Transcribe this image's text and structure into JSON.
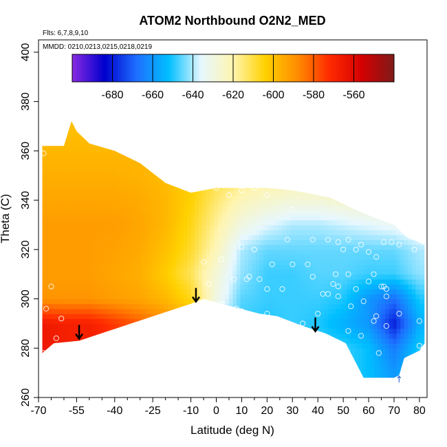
{
  "chart_data": {
    "type": "heatmap",
    "title": "ATOM2 Northbound O2N2_MED",
    "annotations": {
      "flights": "Flts: 6,7,8,9,10",
      "dates": "MMDD: 0210,0213,0215,0218,0219"
    },
    "xlabel": "Latitude (deg N)",
    "ylabel": "Theta (C)",
    "xlim": [
      -70,
      83
    ],
    "ylim": [
      260,
      405
    ],
    "xticks": [
      "-70",
      "-55",
      "-40",
      "-25",
      "-10",
      "0",
      "10",
      "20",
      "30",
      "40",
      "50",
      "60",
      "70",
      "80"
    ],
    "xtick_values": [
      -70,
      -55,
      -40,
      -25,
      -10,
      0,
      10,
      20,
      30,
      40,
      50,
      60,
      70,
      80
    ],
    "xminor_values": [
      -65,
      -60,
      -50,
      -45,
      -35,
      -30,
      -20,
      -15,
      -5,
      5,
      15,
      25,
      35,
      45,
      55,
      65,
      75
    ],
    "yticks": [
      "260",
      "280",
      "300",
      "320",
      "340",
      "360",
      "380",
      "400"
    ],
    "ytick_values": [
      260,
      280,
      300,
      320,
      340,
      360,
      380,
      400
    ],
    "colorbar": {
      "range": [
        -700,
        -540
      ],
      "ticks": [
        "-680",
        "-660",
        "-640",
        "-620",
        "-600",
        "-580",
        "-560"
      ],
      "tick_values": [
        -680,
        -660,
        -640,
        -620,
        -600,
        -580,
        -560
      ],
      "colors": [
        "#8a2be2",
        "#0000cd",
        "#1e6fff",
        "#00bfff",
        "#e6f7ff",
        "#fff5b0",
        "#ffd100",
        "#ff8c00",
        "#ff2a00",
        "#d40000",
        "#7f1a1a"
      ]
    },
    "region_outline": [
      [
        -68.5,
        278
      ],
      [
        -64,
        282
      ],
      [
        -54,
        283
      ],
      [
        -10,
        298
      ],
      [
        -5,
        300
      ],
      [
        2,
        298
      ],
      [
        17,
        294
      ],
      [
        24,
        293
      ],
      [
        34,
        289
      ],
      [
        43,
        286
      ],
      [
        51,
        282
      ],
      [
        58,
        268
      ],
      [
        70,
        268
      ],
      [
        72,
        269
      ],
      [
        74,
        276
      ],
      [
        80,
        279
      ],
      [
        82,
        282
      ],
      [
        82,
        322
      ],
      [
        75,
        325
      ],
      [
        70,
        330
      ],
      [
        62,
        333
      ],
      [
        55,
        336
      ],
      [
        45,
        341
      ],
      [
        30,
        344
      ],
      [
        20,
        345
      ],
      [
        10,
        345
      ],
      [
        0,
        345
      ],
      [
        -10,
        343
      ],
      [
        -20,
        347
      ],
      [
        -30,
        355
      ],
      [
        -40,
        360
      ],
      [
        -50,
        363
      ],
      [
        -55,
        368
      ],
      [
        -57,
        372
      ],
      [
        -60,
        362
      ],
      [
        -68.5,
        362
      ]
    ],
    "value_grid": {
      "lats": [
        -70,
        -60,
        -50,
        -40,
        -30,
        -20,
        -10,
        0,
        10,
        20,
        30,
        40,
        50,
        60,
        70,
        80
      ],
      "thetas": [
        270,
        280,
        290,
        300,
        310,
        320,
        330,
        340,
        350,
        360,
        370
      ],
      "values": [
        [
          -565,
          -568,
          -568,
          -580,
          -585,
          -590,
          -600,
          -640,
          -650,
          -650,
          -648,
          -648,
          -648,
          -652,
          -660,
          -650
        ],
        [
          -565,
          -568,
          -568,
          -576,
          -582,
          -588,
          -596,
          -640,
          -650,
          -650,
          -648,
          -648,
          -648,
          -652,
          -665,
          -650
        ],
        [
          -565,
          -568,
          -568,
          -574,
          -580,
          -588,
          -596,
          -638,
          -648,
          -650,
          -648,
          -650,
          -655,
          -660,
          -680,
          -655
        ],
        [
          -590,
          -590,
          -590,
          -592,
          -594,
          -598,
          -606,
          -630,
          -646,
          -648,
          -648,
          -648,
          -650,
          -660,
          -668,
          -650
        ],
        [
          -592,
          -592,
          -592,
          -594,
          -596,
          -603,
          -612,
          -628,
          -642,
          -648,
          -648,
          -646,
          -646,
          -648,
          -648,
          -642
        ],
        [
          -592,
          -592,
          -592,
          -593,
          -595,
          -600,
          -608,
          -622,
          -640,
          -645,
          -645,
          -645,
          -645,
          -645,
          -645,
          -640
        ],
        [
          -592,
          -592,
          -592,
          -592,
          -594,
          -598,
          -606,
          -618,
          -630,
          -636,
          -640,
          -640,
          -638,
          -636,
          -634,
          -630
        ],
        [
          -594,
          -594,
          -594,
          -594,
          -595,
          -598,
          -604,
          -614,
          -622,
          -626,
          -628,
          -628,
          -626,
          -624,
          -622,
          -620
        ],
        [
          -596,
          -596,
          -596,
          -596,
          -597,
          -599,
          -604,
          -610,
          -615,
          -618,
          -620,
          -620,
          -618,
          -616,
          -614,
          -612
        ],
        [
          -598,
          -598,
          -598,
          -598,
          -598,
          -600,
          -604,
          -606,
          -610,
          -612,
          -612,
          -612,
          -612,
          -610,
          -610,
          -608
        ],
        [
          -600,
          -600,
          -600,
          -600,
          -600,
          -600,
          -602,
          -604,
          -606,
          -606,
          -606,
          -606,
          -606,
          -606,
          -606,
          -606
        ]
      ]
    },
    "points": [
      [
        -68,
        278
      ],
      [
        -67,
        296
      ],
      [
        -65,
        305
      ],
      [
        -63,
        284
      ],
      [
        -63,
        281
      ],
      [
        -61,
        292
      ],
      [
        -68,
        359
      ],
      [
        -5,
        315
      ],
      [
        -3,
        306
      ],
      [
        2,
        316
      ],
      [
        2,
        298
      ],
      [
        7,
        308
      ],
      [
        12,
        308
      ],
      [
        13,
        309
      ],
      [
        17,
        308
      ],
      [
        20,
        304
      ],
      [
        26,
        304
      ],
      [
        8,
        296
      ],
      [
        10,
        295
      ],
      [
        20,
        294
      ],
      [
        34,
        290
      ],
      [
        40,
        294
      ],
      [
        42,
        302
      ],
      [
        48,
        301
      ],
      [
        48,
        305
      ],
      [
        53,
        297
      ],
      [
        58,
        299
      ],
      [
        52,
        287
      ],
      [
        57,
        285
      ],
      [
        62,
        291
      ],
      [
        63,
        293
      ],
      [
        64,
        278
      ],
      [
        66,
        305
      ],
      [
        67,
        304
      ],
      [
        67,
        301
      ],
      [
        67,
        289
      ],
      [
        72,
        294
      ],
      [
        80,
        291
      ],
      [
        80,
        281
      ],
      [
        0,
        345
      ],
      [
        5,
        342
      ],
      [
        10,
        344
      ],
      [
        15,
        345
      ],
      [
        20,
        342
      ],
      [
        30,
        336
      ],
      [
        28,
        324
      ],
      [
        36,
        314
      ],
      [
        38,
        324
      ],
      [
        44,
        324
      ],
      [
        48,
        323
      ],
      [
        50,
        320
      ],
      [
        52,
        324
      ],
      [
        55,
        320
      ],
      [
        57,
        322
      ],
      [
        60,
        319
      ],
      [
        63,
        317
      ],
      [
        66,
        323
      ],
      [
        69,
        323
      ],
      [
        72,
        322
      ],
      [
        78,
        320
      ],
      [
        62,
        310
      ],
      [
        47,
        310
      ],
      [
        46,
        306
      ],
      [
        52,
        310
      ],
      [
        55,
        304
      ],
      [
        60,
        307
      ],
      [
        65,
        305
      ],
      [
        38,
        309
      ],
      [
        44,
        302
      ],
      [
        30,
        314
      ],
      [
        22,
        314
      ],
      [
        15,
        320
      ],
      [
        10,
        321
      ]
    ],
    "arrows": [
      [
        -54,
        283
      ],
      [
        -8,
        298
      ],
      [
        39,
        286
      ]
    ],
    "arrow_marker": [
      72,
      267
    ]
  }
}
